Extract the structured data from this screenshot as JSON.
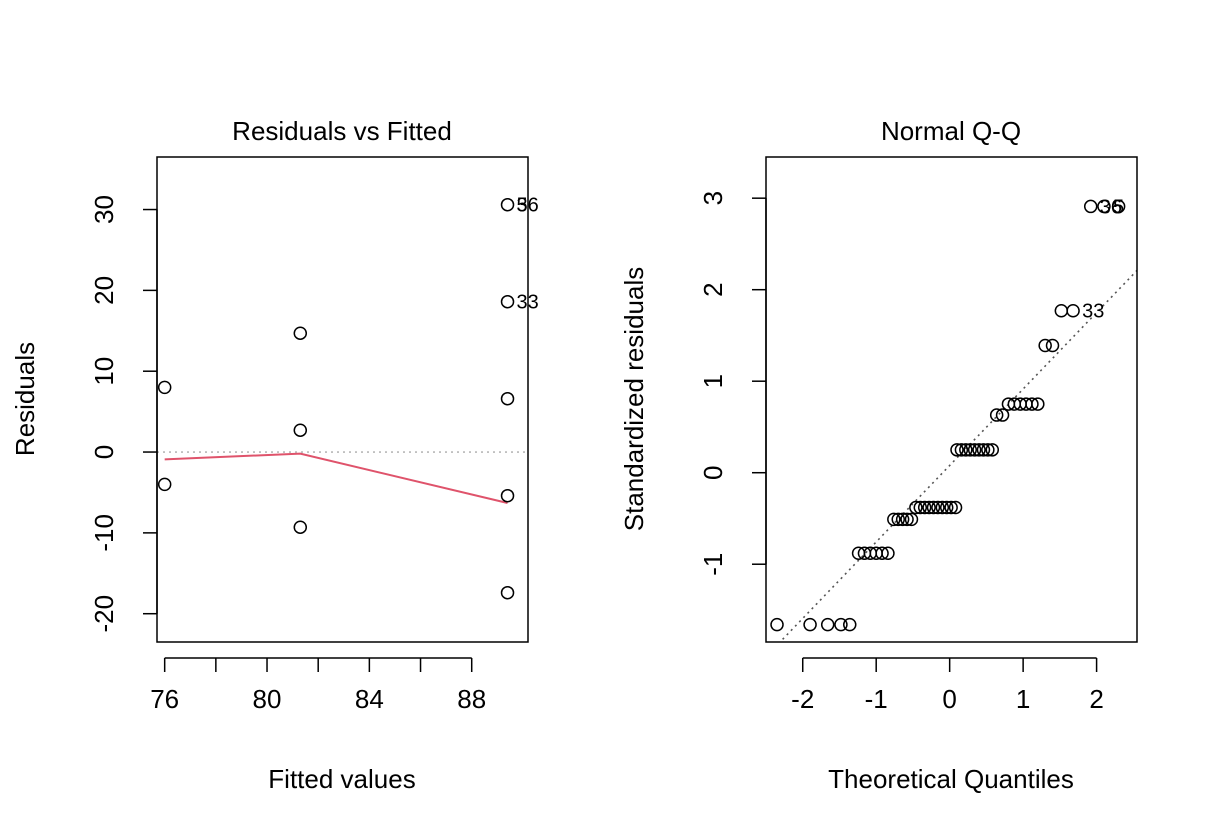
{
  "chart_data": [
    {
      "type": "scatter",
      "title": "Residuals vs Fitted",
      "xlabel": "Fitted values",
      "ylabel": "Residuals",
      "xlim": [
        75.7,
        90.2
      ],
      "ylim": [
        -23.5,
        36.5
      ],
      "x_ticks": [
        76,
        78,
        80,
        82,
        84,
        86,
        88
      ],
      "x_tick_labels": [
        "76",
        "",
        "80",
        "",
        "84",
        "",
        "88"
      ],
      "y_ticks": [
        -20,
        -10,
        0,
        10,
        20,
        30
      ],
      "y_tick_labels": [
        "-20",
        "-10",
        "0",
        "10",
        "20",
        "30"
      ],
      "grid": false,
      "points": [
        {
          "x": 76.0,
          "y": 8.0
        },
        {
          "x": 76.0,
          "y": -4.0
        },
        {
          "x": 81.3,
          "y": 14.7
        },
        {
          "x": 81.3,
          "y": 2.7
        },
        {
          "x": 81.3,
          "y": -9.3
        },
        {
          "x": 89.4,
          "y": 30.6
        },
        {
          "x": 89.4,
          "y": 18.6
        },
        {
          "x": 89.4,
          "y": 6.6
        },
        {
          "x": 89.4,
          "y": -5.4
        },
        {
          "x": 89.4,
          "y": -17.4
        }
      ],
      "point_labels": [
        {
          "x": 89.4,
          "y": 30.6,
          "text": "36"
        },
        {
          "x": 89.4,
          "y": 30.6,
          "text": "5"
        },
        {
          "x": 89.4,
          "y": 18.6,
          "text": "33"
        }
      ],
      "reference_line": {
        "y": 0,
        "color": "#b8b8b8"
      },
      "smooth_line": {
        "color": "#df536b",
        "x": [
          76.0,
          81.3,
          89.4
        ],
        "y": [
          -0.9,
          -0.2,
          -6.3
        ]
      }
    },
    {
      "type": "scatter",
      "title": "Normal Q-Q",
      "xlabel": "Theoretical Quantiles",
      "ylabel": "Standardized residuals",
      "xlim": [
        -2.5,
        2.55
      ],
      "ylim": [
        -1.85,
        3.45
      ],
      "x_ticks": [
        -2,
        -1,
        0,
        1,
        2
      ],
      "x_tick_labels": [
        "-2",
        "-1",
        "0",
        "1",
        "2"
      ],
      "y_ticks": [
        -1,
        0,
        1,
        2,
        3
      ],
      "y_tick_labels": [
        "-1",
        "0",
        "1",
        "2",
        "3"
      ],
      "grid": false,
      "reference_line": {
        "x": [
          -2.5,
          2.55
        ],
        "y": [
          -2.01,
          2.21
        ],
        "color": "#555555"
      },
      "points": [
        {
          "x": -2.35,
          "y": -1.66
        },
        {
          "x": -1.9,
          "y": -1.66
        },
        {
          "x": -1.66,
          "y": -1.66
        },
        {
          "x": -1.48,
          "y": -1.66
        },
        {
          "x": -1.36,
          "y": -1.66
        },
        {
          "x": -1.24,
          "y": -0.88
        },
        {
          "x": -1.16,
          "y": -0.88
        },
        {
          "x": -1.08,
          "y": -0.88
        },
        {
          "x": -1.0,
          "y": -0.88
        },
        {
          "x": -0.92,
          "y": -0.88
        },
        {
          "x": -0.84,
          "y": -0.88
        },
        {
          "x": -0.76,
          "y": -0.51
        },
        {
          "x": -0.7,
          "y": -0.51
        },
        {
          "x": -0.64,
          "y": -0.51
        },
        {
          "x": -0.58,
          "y": -0.51
        },
        {
          "x": -0.52,
          "y": -0.51
        },
        {
          "x": -0.46,
          "y": -0.38
        },
        {
          "x": -0.4,
          "y": -0.38
        },
        {
          "x": -0.34,
          "y": -0.38
        },
        {
          "x": -0.28,
          "y": -0.38
        },
        {
          "x": -0.22,
          "y": -0.38
        },
        {
          "x": -0.16,
          "y": -0.38
        },
        {
          "x": -0.1,
          "y": -0.38
        },
        {
          "x": -0.04,
          "y": -0.38
        },
        {
          "x": 0.02,
          "y": -0.38
        },
        {
          "x": 0.08,
          "y": -0.38
        },
        {
          "x": 0.1,
          "y": 0.25
        },
        {
          "x": 0.16,
          "y": 0.25
        },
        {
          "x": 0.22,
          "y": 0.25
        },
        {
          "x": 0.28,
          "y": 0.25
        },
        {
          "x": 0.34,
          "y": 0.25
        },
        {
          "x": 0.4,
          "y": 0.25
        },
        {
          "x": 0.46,
          "y": 0.25
        },
        {
          "x": 0.52,
          "y": 0.25
        },
        {
          "x": 0.58,
          "y": 0.25
        },
        {
          "x": 0.64,
          "y": 0.63
        },
        {
          "x": 0.72,
          "y": 0.63
        },
        {
          "x": 0.8,
          "y": 0.75
        },
        {
          "x": 0.88,
          "y": 0.75
        },
        {
          "x": 0.96,
          "y": 0.75
        },
        {
          "x": 1.04,
          "y": 0.75
        },
        {
          "x": 1.12,
          "y": 0.75
        },
        {
          "x": 1.2,
          "y": 0.75
        },
        {
          "x": 1.3,
          "y": 1.39
        },
        {
          "x": 1.4,
          "y": 1.39
        },
        {
          "x": 1.52,
          "y": 1.77
        },
        {
          "x": 1.68,
          "y": 1.77
        },
        {
          "x": 1.92,
          "y": 2.91
        },
        {
          "x": 2.1,
          "y": 2.91
        },
        {
          "x": 2.3,
          "y": 2.91
        }
      ],
      "point_labels": [
        {
          "x": 1.92,
          "y": 2.91,
          "text": "36"
        },
        {
          "x": 2.1,
          "y": 2.91,
          "text": "5"
        },
        {
          "x": 1.68,
          "y": 1.77,
          "text": "33"
        }
      ]
    }
  ]
}
